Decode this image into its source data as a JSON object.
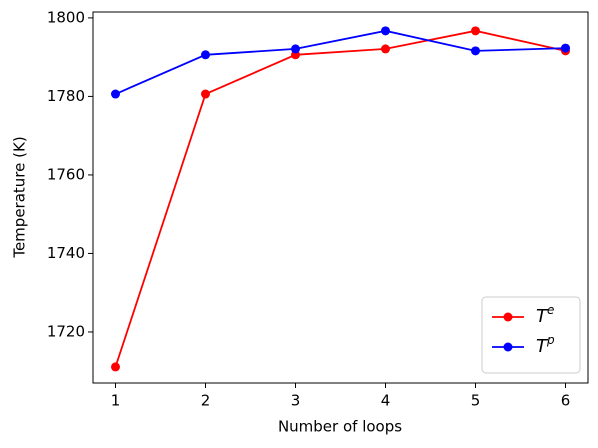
{
  "chart_data": {
    "type": "line",
    "x_label": "Number of loops",
    "y_label": "Temperature (K)",
    "x": [
      1,
      2,
      3,
      4,
      5,
      6
    ],
    "series": [
      {
        "name": "Te",
        "color": "#ff0000",
        "values": [
          1711.1,
          1780.6,
          1790.6,
          1792.1,
          1796.7,
          1791.6
        ]
      },
      {
        "name": "Tp",
        "color": "#0000ff",
        "values": [
          1780.6,
          1790.6,
          1792.1,
          1796.7,
          1791.6,
          1792.3
        ]
      }
    ],
    "xlim": [
      0.75,
      6.25
    ],
    "xticks": [
      1,
      2,
      3,
      4,
      5,
      6
    ],
    "ylim": [
      1707,
      1801.5
    ],
    "yticks": [
      1720,
      1740,
      1760,
      1780,
      1800
    ],
    "legend": "lower right"
  }
}
